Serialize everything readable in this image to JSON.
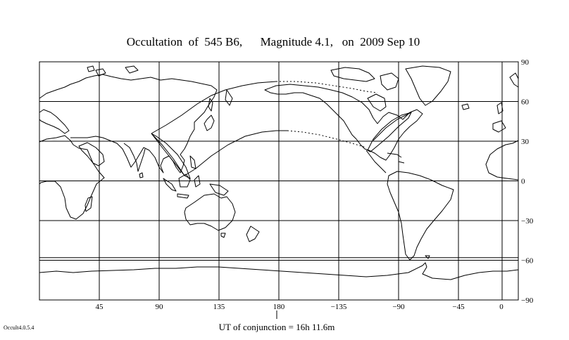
{
  "title": "Occultation  of  545 B6,      Magnitude 4.1,   on  2009 Sep 10",
  "ut_label": "UT of conjunction = 16h 11.6m",
  "version_label": "Occult4.0.5.4",
  "map": {
    "lon_ticks": [
      {
        "lon": 45,
        "label": "45"
      },
      {
        "lon": 90,
        "label": "90"
      },
      {
        "lon": 135,
        "label": "135"
      },
      {
        "lon": 180,
        "label": "180"
      },
      {
        "lon": 225,
        "label": "−135"
      },
      {
        "lon": 270,
        "label": "−90"
      },
      {
        "lon": 315,
        "label": "−45"
      },
      {
        "lon": 360,
        "label": "0"
      }
    ],
    "lat_ticks": [
      {
        "lat": 90,
        "label": "90"
      },
      {
        "lat": 60,
        "label": "60"
      },
      {
        "lat": 30,
        "label": "30"
      },
      {
        "lat": 0,
        "label": "0"
      },
      {
        "lat": -30,
        "label": "−30"
      },
      {
        "lat": -60,
        "label": "−60"
      },
      {
        "lat": -90,
        "label": "−90"
      }
    ],
    "extra_lat_lines": [
      -58
    ],
    "conjunction_lon": 190
  }
}
